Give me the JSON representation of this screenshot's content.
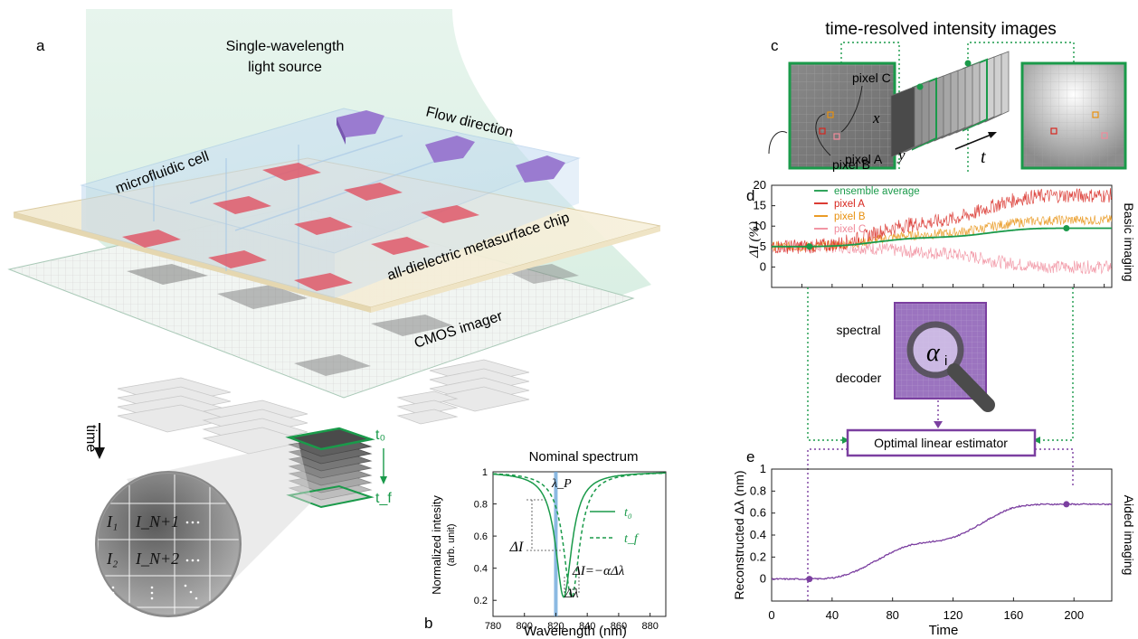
{
  "panels": {
    "a": "a",
    "b": "b",
    "c": "c",
    "d": "d",
    "e": "e"
  },
  "panel_a": {
    "light_source": [
      "Single-wavelength",
      "light source"
    ],
    "flow_direction": "Flow direction",
    "microfluidic_cell": "microfluidic cell",
    "chip": "all-dielectric metasurface chip",
    "cmos": "CMOS imager",
    "time": "time",
    "t0": "t₀",
    "tf": "t_f",
    "inset": {
      "i1": "I₁",
      "in1": "I_N+1",
      "i2": "I₂",
      "in2": "I_N+2"
    }
  },
  "panel_c": {
    "title": "time-resolved intensity images",
    "pixel_a": "pixel A",
    "pixel_b": "pixel B",
    "pixel_c": "pixel C",
    "x": "x",
    "y": "y",
    "t": "t"
  },
  "decoder": {
    "label1": "spectral",
    "label2": "decoder",
    "alpha": "α",
    "alpha_sub": "i"
  },
  "estimator": "Optimal linear estimator",
  "colors": {
    "green": "#1a9a4a",
    "red": "#d7261e",
    "orange": "#e8900e",
    "pink": "#f08a9a",
    "purple": "#7b3fa0",
    "blue": "#6fa8dc"
  },
  "chart_data": [
    {
      "panel": "b",
      "type": "line",
      "title": "Nominal spectrum",
      "xlabel": "Wavelength (nm)",
      "ylabel": "Normalized intesity",
      "ylabel2": "(arb. unit)",
      "xlim": [
        780,
        890
      ],
      "ylim": [
        0.1,
        1.0
      ],
      "xticks": [
        780,
        800,
        820,
        840,
        860,
        880
      ],
      "yticks": [
        0.2,
        0.4,
        0.6,
        0.8,
        1
      ],
      "probe_wavelength": 820,
      "probe_label": "λ_P",
      "delta_i_label": "ΔI",
      "delta_lambda_label": "Δλ",
      "equation": "ΔI=−αΔλ",
      "legend": [
        "t₀",
        "t_f"
      ],
      "series": [
        {
          "name": "t₀",
          "center": 825,
          "width": 10,
          "depth": 0.78,
          "style": "solid"
        },
        {
          "name": "t_f",
          "center": 830,
          "width": 10,
          "depth": 0.78,
          "style": "dashed"
        }
      ]
    },
    {
      "panel": "d",
      "type": "line",
      "xlabel": "",
      "ylabel": "ΔI (%)",
      "side_label": "Basic imaging",
      "xlim": [
        0,
        225
      ],
      "ylim": [
        -5,
        20
      ],
      "yticks": [
        0,
        5,
        10,
        15,
        20
      ],
      "legend": [
        "ensemble average",
        "pixel A",
        "pixel B",
        "pixel C"
      ],
      "series": [
        {
          "name": "ensemble average",
          "x": [
            0,
            40,
            60,
            80,
            100,
            120,
            140,
            160,
            180,
            200,
            225
          ],
          "y": [
            5,
            5,
            5.5,
            6.8,
            7.2,
            7.3,
            8,
            9.3,
            9.5,
            9.5,
            9.5
          ]
        },
        {
          "name": "pixel A",
          "x": [
            0,
            40,
            60,
            80,
            100,
            120,
            140,
            160,
            180,
            200,
            225
          ],
          "y": [
            5,
            5,
            7,
            10,
            11,
            11,
            14,
            17,
            17.5,
            17.5,
            17.5
          ]
        },
        {
          "name": "pixel B",
          "x": [
            0,
            40,
            60,
            80,
            100,
            120,
            140,
            160,
            180,
            200,
            225
          ],
          "y": [
            5,
            5,
            6,
            7.5,
            8,
            8,
            9.5,
            11,
            11.5,
            11.5,
            11.5
          ]
        },
        {
          "name": "pixel C",
          "x": [
            0,
            40,
            60,
            80,
            100,
            120,
            140,
            160,
            180,
            200,
            225
          ],
          "y": [
            5,
            5,
            5,
            4,
            3.5,
            3.5,
            2,
            0.5,
            0,
            0,
            0
          ]
        }
      ],
      "markers_x": [
        25,
        195
      ]
    },
    {
      "panel": "e",
      "type": "line",
      "xlabel": "Time",
      "ylabel": "Reconstructed Δλ (nm)",
      "side_label": "Aided imaging",
      "xlim": [
        0,
        225
      ],
      "ylim": [
        -0.2,
        1
      ],
      "xticks": [
        0,
        40,
        80,
        120,
        160,
        200
      ],
      "yticks": [
        0,
        0.2,
        0.4,
        0.6,
        0.8,
        1
      ],
      "series": [
        {
          "name": "",
          "x": [
            0,
            40,
            55,
            70,
            85,
            100,
            115,
            130,
            145,
            160,
            175,
            200,
            225
          ],
          "y": [
            0,
            0,
            0.02,
            0.18,
            0.32,
            0.34,
            0.34,
            0.38,
            0.6,
            0.68,
            0.68,
            0.68,
            0.68
          ]
        }
      ],
      "markers_x": [
        25,
        195
      ]
    }
  ]
}
